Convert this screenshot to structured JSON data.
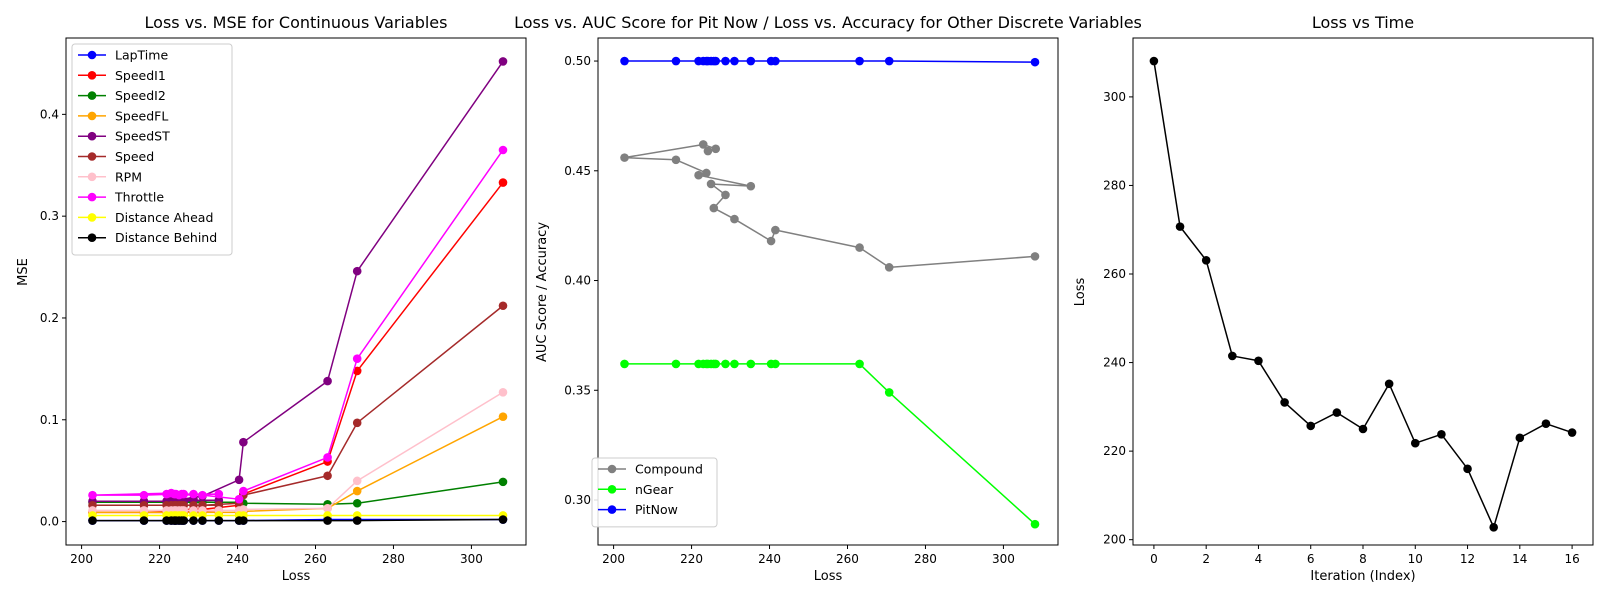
{
  "chart_data": [
    {
      "type": "line",
      "title": "Loss vs. MSE for Continuous Variables",
      "xlabel": "Loss",
      "ylabel": "MSE",
      "xlim": [
        196,
        314
      ],
      "ylim": [
        -0.023,
        0.475
      ],
      "xticks": [
        "200",
        "220",
        "240",
        "260",
        "280",
        "300"
      ],
      "yticks": [
        "0.0",
        "0.1",
        "0.2",
        "0.3",
        "0.4"
      ],
      "legend_position": "top-left",
      "x": [
        308.1,
        270.7,
        263.1,
        241.5,
        240.4,
        231.0,
        225.7,
        228.7,
        225.0,
        235.2,
        221.8,
        223.8,
        216.0,
        202.8,
        223.0,
        226.2,
        224.2
      ],
      "series": [
        {
          "name": "LapTime",
          "color": "#0000ff",
          "values": [
            0.002,
            0.002,
            0.002,
            0.001,
            0.001,
            0.001,
            0.001,
            0.001,
            0.001,
            0.001,
            0.001,
            0.001,
            0.001,
            0.001,
            0.001,
            0.001,
            0.001
          ]
        },
        {
          "name": "SpeedI1",
          "color": "#ff0000",
          "values": [
            0.333,
            0.148,
            0.059,
            0.027,
            0.016,
            0.012,
            0.012,
            0.012,
            0.011,
            0.011,
            0.01,
            0.01,
            0.009,
            0.009,
            0.009,
            0.009,
            0.009
          ]
        },
        {
          "name": "SpeedI2",
          "color": "#008000",
          "values": [
            0.039,
            0.018,
            0.017,
            0.018,
            0.019,
            0.019,
            0.019,
            0.019,
            0.019,
            0.019,
            0.019,
            0.019,
            0.019,
            0.019,
            0.019,
            0.019,
            0.019
          ]
        },
        {
          "name": "SpeedFL",
          "color": "#ffa500",
          "values": [
            0.103,
            0.03,
            0.013,
            0.01,
            0.009,
            0.009,
            0.009,
            0.009,
            0.009,
            0.009,
            0.009,
            0.009,
            0.009,
            0.009,
            0.009,
            0.009,
            0.009
          ]
        },
        {
          "name": "SpeedST",
          "color": "#800080",
          "values": [
            0.452,
            0.246,
            0.138,
            0.078,
            0.041,
            0.025,
            0.022,
            0.022,
            0.021,
            0.021,
            0.02,
            0.02,
            0.02,
            0.02,
            0.02,
            0.02,
            0.02
          ]
        },
        {
          "name": "Speed",
          "color": "#a52a2a",
          "values": [
            0.212,
            0.097,
            0.045,
            0.026,
            0.018,
            0.016,
            0.016,
            0.016,
            0.016,
            0.016,
            0.016,
            0.016,
            0.016,
            0.016,
            0.016,
            0.016,
            0.016
          ]
        },
        {
          "name": "RPM",
          "color": "#ffc0cb",
          "values": [
            0.127,
            0.04,
            0.013,
            0.012,
            0.011,
            0.011,
            0.011,
            0.011,
            0.011,
            0.011,
            0.011,
            0.011,
            0.011,
            0.011,
            0.011,
            0.011,
            0.011
          ]
        },
        {
          "name": "Throttle",
          "color": "#ff00ff",
          "values": [
            0.365,
            0.16,
            0.063,
            0.03,
            0.022,
            0.026,
            0.027,
            0.027,
            0.026,
            0.027,
            0.027,
            0.027,
            0.026,
            0.026,
            0.028,
            0.027,
            0.027
          ]
        },
        {
          "name": "Distance Ahead",
          "color": "#ffff00",
          "values": [
            0.006,
            0.006,
            0.006,
            0.006,
            0.006,
            0.006,
            0.006,
            0.006,
            0.006,
            0.006,
            0.006,
            0.006,
            0.006,
            0.006,
            0.006,
            0.006,
            0.006
          ]
        },
        {
          "name": "Distance Behind",
          "color": "#000000",
          "values": [
            0.002,
            0.001,
            0.001,
            0.001,
            0.001,
            0.001,
            0.001,
            0.001,
            0.001,
            0.001,
            0.001,
            0.001,
            0.001,
            0.001,
            0.001,
            0.001,
            0.001
          ]
        }
      ]
    },
    {
      "type": "line",
      "title": "Loss vs. AUC Score for Pit Now / Loss vs. Accuracy for Other Discrete Variables",
      "xlabel": "Loss",
      "ylabel": "AUC Score / Accuracy",
      "xlim": [
        196,
        314
      ],
      "ylim": [
        0.2795,
        0.5105
      ],
      "xticks": [
        "200",
        "220",
        "240",
        "260",
        "280",
        "300"
      ],
      "yticks": [
        "0.30",
        "0.35",
        "0.40",
        "0.45",
        "0.50"
      ],
      "legend_position": "bottom-left",
      "x": [
        308.1,
        270.7,
        263.1,
        241.5,
        240.4,
        231.0,
        225.7,
        228.7,
        225.0,
        235.2,
        221.8,
        223.8,
        216.0,
        202.8,
        223.0,
        226.2,
        224.2
      ],
      "series": [
        {
          "name": "Compound",
          "color": "#808080",
          "values": [
            0.411,
            0.406,
            0.415,
            0.423,
            0.418,
            0.428,
            0.433,
            0.439,
            0.444,
            0.443,
            0.448,
            0.449,
            0.455,
            0.456,
            0.462,
            0.46,
            0.459
          ]
        },
        {
          "name": "nGear",
          "color": "#00ff00",
          "values": [
            0.289,
            0.349,
            0.362,
            0.362,
            0.362,
            0.362,
            0.362,
            0.362,
            0.362,
            0.362,
            0.362,
            0.362,
            0.362,
            0.362,
            0.362,
            0.362,
            0.362
          ]
        },
        {
          "name": "PitNow",
          "color": "#0000ff",
          "values": [
            0.4995,
            0.5,
            0.5,
            0.5,
            0.5,
            0.5,
            0.5,
            0.5,
            0.5,
            0.5,
            0.5,
            0.5,
            0.5,
            0.5,
            0.5,
            0.5,
            0.5
          ]
        }
      ]
    },
    {
      "type": "line",
      "title": "Loss vs Time",
      "xlabel": "Iteration (Index)",
      "ylabel": "Loss",
      "xlim": [
        -0.8,
        16.8
      ],
      "ylim": [
        198.8,
        313.3
      ],
      "xticks": [
        "0",
        "2",
        "4",
        "6",
        "8",
        "10",
        "12",
        "14",
        "16"
      ],
      "yticks": [
        "200",
        "220",
        "240",
        "260",
        "280",
        "300"
      ],
      "legend_position": "none",
      "x": [
        0,
        1,
        2,
        3,
        4,
        5,
        6,
        7,
        8,
        9,
        10,
        11,
        12,
        13,
        14,
        15,
        16
      ],
      "series": [
        {
          "color": "#000000",
          "values": [
            308.1,
            270.7,
            263.1,
            241.5,
            240.4,
            231.0,
            225.7,
            228.7,
            225.0,
            235.2,
            221.8,
            223.8,
            216.0,
            202.8,
            223.0,
            226.2,
            224.2
          ]
        }
      ]
    }
  ]
}
